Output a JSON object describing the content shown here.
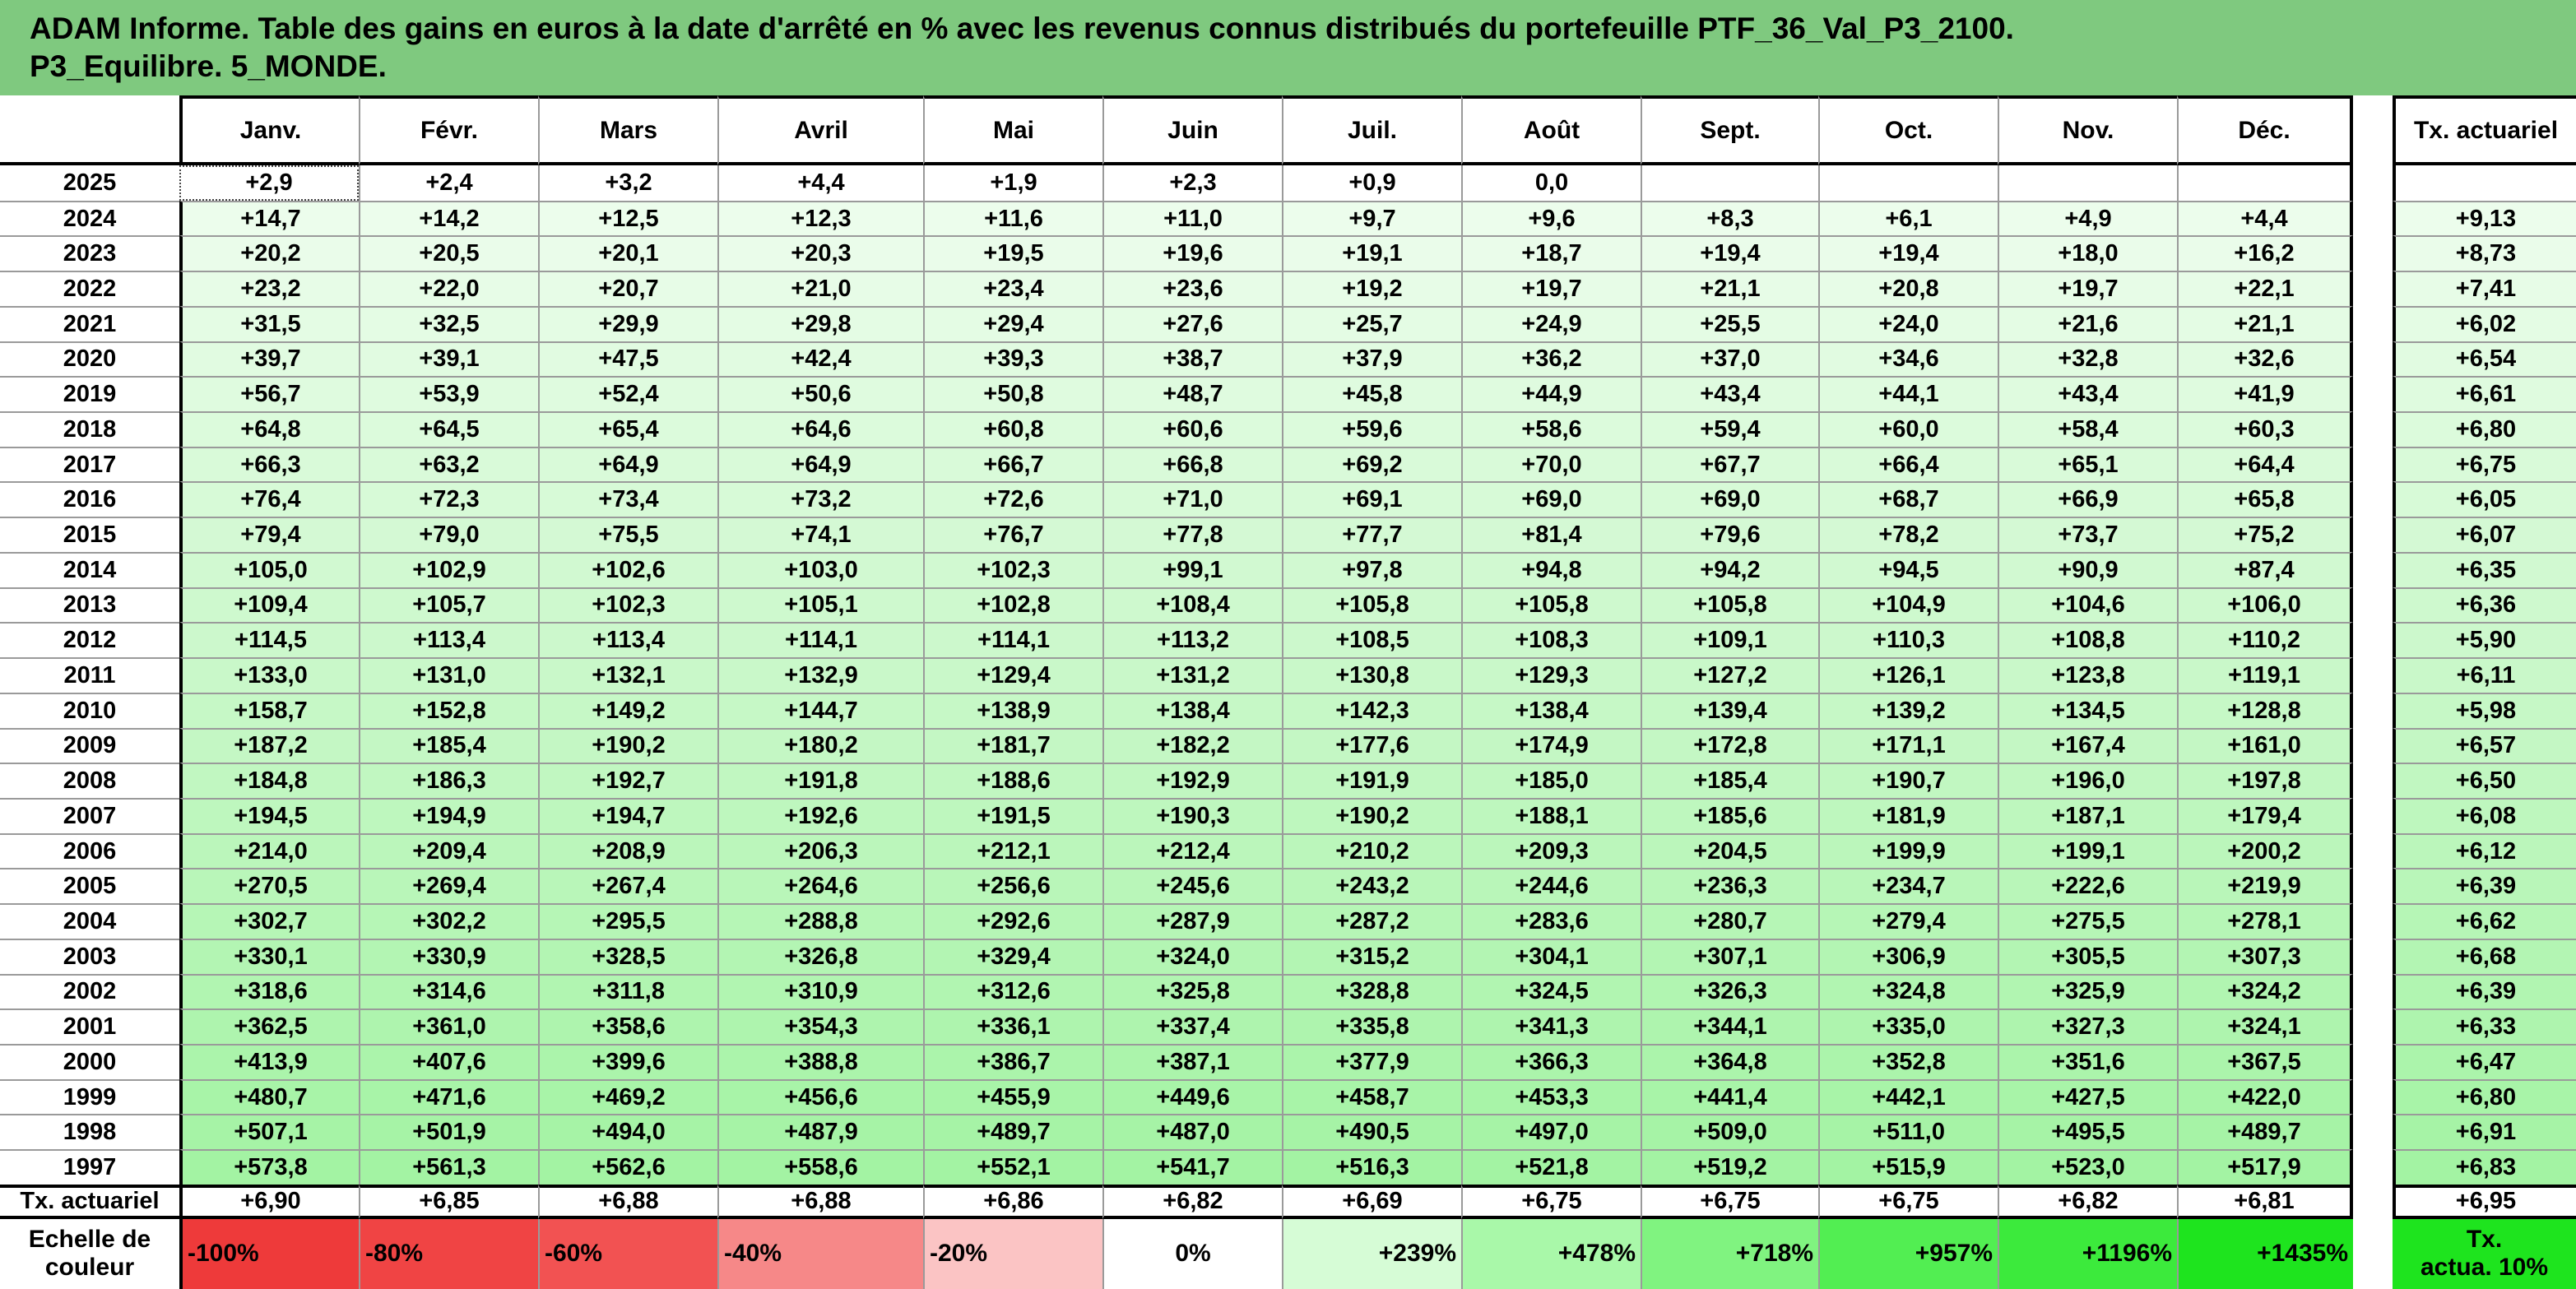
{
  "title": "ADAM Informe. Table des gains en euros à la date d'arrêté en % avec les revenus connus distribués du portefeuille PTF_36_Val_P3_2100.\nP3_Equilibre. 5_MONDE.",
  "header": {
    "months": [
      "Janv.",
      "Févr.",
      "Mars",
      "Avril",
      "Mai",
      "Juin",
      "Juil.",
      "Août",
      "Sept.",
      "Oct.",
      "Nov.",
      "Déc."
    ],
    "actuarial_label": "Tx. actuariel"
  },
  "rows": [
    {
      "year": "2025",
      "values": [
        "+2,9",
        "+2,4",
        "+3,2",
        "+4,4",
        "+1,9",
        "+2,3",
        "+0,9",
        "0,0",
        "",
        "",
        "",
        ""
      ],
      "rate": ""
    },
    {
      "year": "2024",
      "values": [
        "+14,7",
        "+14,2",
        "+12,5",
        "+12,3",
        "+11,6",
        "+11,0",
        "+9,7",
        "+9,6",
        "+8,3",
        "+6,1",
        "+4,9",
        "+4,4"
      ],
      "rate": "+9,13"
    },
    {
      "year": "2023",
      "values": [
        "+20,2",
        "+20,5",
        "+20,1",
        "+20,3",
        "+19,5",
        "+19,6",
        "+19,1",
        "+18,7",
        "+19,4",
        "+19,4",
        "+18,0",
        "+16,2"
      ],
      "rate": "+8,73"
    },
    {
      "year": "2022",
      "values": [
        "+23,2",
        "+22,0",
        "+20,7",
        "+21,0",
        "+23,4",
        "+23,6",
        "+19,2",
        "+19,7",
        "+21,1",
        "+20,8",
        "+19,7",
        "+22,1"
      ],
      "rate": "+7,41"
    },
    {
      "year": "2021",
      "values": [
        "+31,5",
        "+32,5",
        "+29,9",
        "+29,8",
        "+29,4",
        "+27,6",
        "+25,7",
        "+24,9",
        "+25,5",
        "+24,0",
        "+21,6",
        "+21,1"
      ],
      "rate": "+6,02"
    },
    {
      "year": "2020",
      "values": [
        "+39,7",
        "+39,1",
        "+47,5",
        "+42,4",
        "+39,3",
        "+38,7",
        "+37,9",
        "+36,2",
        "+37,0",
        "+34,6",
        "+32,8",
        "+32,6"
      ],
      "rate": "+6,54"
    },
    {
      "year": "2019",
      "values": [
        "+56,7",
        "+53,9",
        "+52,4",
        "+50,6",
        "+50,8",
        "+48,7",
        "+45,8",
        "+44,9",
        "+43,4",
        "+44,1",
        "+43,4",
        "+41,9"
      ],
      "rate": "+6,61"
    },
    {
      "year": "2018",
      "values": [
        "+64,8",
        "+64,5",
        "+65,4",
        "+64,6",
        "+60,8",
        "+60,6",
        "+59,6",
        "+58,6",
        "+59,4",
        "+60,0",
        "+58,4",
        "+60,3"
      ],
      "rate": "+6,80"
    },
    {
      "year": "2017",
      "values": [
        "+66,3",
        "+63,2",
        "+64,9",
        "+64,9",
        "+66,7",
        "+66,8",
        "+69,2",
        "+70,0",
        "+67,7",
        "+66,4",
        "+65,1",
        "+64,4"
      ],
      "rate": "+6,75"
    },
    {
      "year": "2016",
      "values": [
        "+76,4",
        "+72,3",
        "+73,4",
        "+73,2",
        "+72,6",
        "+71,0",
        "+69,1",
        "+69,0",
        "+69,0",
        "+68,7",
        "+66,9",
        "+65,8"
      ],
      "rate": "+6,05"
    },
    {
      "year": "2015",
      "values": [
        "+79,4",
        "+79,0",
        "+75,5",
        "+74,1",
        "+76,7",
        "+77,8",
        "+77,7",
        "+81,4",
        "+79,6",
        "+78,2",
        "+73,7",
        "+75,2"
      ],
      "rate": "+6,07"
    },
    {
      "year": "2014",
      "values": [
        "+105,0",
        "+102,9",
        "+102,6",
        "+103,0",
        "+102,3",
        "+99,1",
        "+97,8",
        "+94,8",
        "+94,2",
        "+94,5",
        "+90,9",
        "+87,4"
      ],
      "rate": "+6,35"
    },
    {
      "year": "2013",
      "values": [
        "+109,4",
        "+105,7",
        "+102,3",
        "+105,1",
        "+102,8",
        "+108,4",
        "+105,8",
        "+105,8",
        "+105,8",
        "+104,9",
        "+104,6",
        "+106,0"
      ],
      "rate": "+6,36"
    },
    {
      "year": "2012",
      "values": [
        "+114,5",
        "+113,4",
        "+113,4",
        "+114,1",
        "+114,1",
        "+113,2",
        "+108,5",
        "+108,3",
        "+109,1",
        "+110,3",
        "+108,8",
        "+110,2"
      ],
      "rate": "+5,90"
    },
    {
      "year": "2011",
      "values": [
        "+133,0",
        "+131,0",
        "+132,1",
        "+132,9",
        "+129,4",
        "+131,2",
        "+130,8",
        "+129,3",
        "+127,2",
        "+126,1",
        "+123,8",
        "+119,1"
      ],
      "rate": "+6,11"
    },
    {
      "year": "2010",
      "values": [
        "+158,7",
        "+152,8",
        "+149,2",
        "+144,7",
        "+138,9",
        "+138,4",
        "+142,3",
        "+138,4",
        "+139,4",
        "+139,2",
        "+134,5",
        "+128,8"
      ],
      "rate": "+5,98"
    },
    {
      "year": "2009",
      "values": [
        "+187,2",
        "+185,4",
        "+190,2",
        "+180,2",
        "+181,7",
        "+182,2",
        "+177,6",
        "+174,9",
        "+172,8",
        "+171,1",
        "+167,4",
        "+161,0"
      ],
      "rate": "+6,57"
    },
    {
      "year": "2008",
      "values": [
        "+184,8",
        "+186,3",
        "+192,7",
        "+191,8",
        "+188,6",
        "+192,9",
        "+191,9",
        "+185,0",
        "+185,4",
        "+190,7",
        "+196,0",
        "+197,8"
      ],
      "rate": "+6,50"
    },
    {
      "year": "2007",
      "values": [
        "+194,5",
        "+194,9",
        "+194,7",
        "+192,6",
        "+191,5",
        "+190,3",
        "+190,2",
        "+188,1",
        "+185,6",
        "+181,9",
        "+187,1",
        "+179,4"
      ],
      "rate": "+6,08"
    },
    {
      "year": "2006",
      "values": [
        "+214,0",
        "+209,4",
        "+208,9",
        "+206,3",
        "+212,1",
        "+212,4",
        "+210,2",
        "+209,3",
        "+204,5",
        "+199,9",
        "+199,1",
        "+200,2"
      ],
      "rate": "+6,12"
    },
    {
      "year": "2005",
      "values": [
        "+270,5",
        "+269,4",
        "+267,4",
        "+264,6",
        "+256,6",
        "+245,6",
        "+243,2",
        "+244,6",
        "+236,3",
        "+234,7",
        "+222,6",
        "+219,9"
      ],
      "rate": "+6,39"
    },
    {
      "year": "2004",
      "values": [
        "+302,7",
        "+302,2",
        "+295,5",
        "+288,8",
        "+292,6",
        "+287,9",
        "+287,2",
        "+283,6",
        "+280,7",
        "+279,4",
        "+275,5",
        "+278,1"
      ],
      "rate": "+6,62"
    },
    {
      "year": "2003",
      "values": [
        "+330,1",
        "+330,9",
        "+328,5",
        "+326,8",
        "+329,4",
        "+324,0",
        "+315,2",
        "+304,1",
        "+307,1",
        "+306,9",
        "+305,5",
        "+307,3"
      ],
      "rate": "+6,68"
    },
    {
      "year": "2002",
      "values": [
        "+318,6",
        "+314,6",
        "+311,8",
        "+310,9",
        "+312,6",
        "+325,8",
        "+328,8",
        "+324,5",
        "+326,3",
        "+324,8",
        "+325,9",
        "+324,2"
      ],
      "rate": "+6,39"
    },
    {
      "year": "2001",
      "values": [
        "+362,5",
        "+361,0",
        "+358,6",
        "+354,3",
        "+336,1",
        "+337,4",
        "+335,8",
        "+341,3",
        "+344,1",
        "+335,0",
        "+327,3",
        "+324,1"
      ],
      "rate": "+6,33"
    },
    {
      "year": "2000",
      "values": [
        "+413,9",
        "+407,6",
        "+399,6",
        "+388,8",
        "+386,7",
        "+387,1",
        "+377,9",
        "+366,3",
        "+364,8",
        "+352,8",
        "+351,6",
        "+367,5"
      ],
      "rate": "+6,47"
    },
    {
      "year": "1999",
      "values": [
        "+480,7",
        "+471,6",
        "+469,2",
        "+456,6",
        "+455,9",
        "+449,6",
        "+458,7",
        "+453,3",
        "+441,4",
        "+442,1",
        "+427,5",
        "+422,0"
      ],
      "rate": "+6,80"
    },
    {
      "year": "1998",
      "values": [
        "+507,1",
        "+501,9",
        "+494,0",
        "+487,9",
        "+489,7",
        "+487,0",
        "+490,5",
        "+497,0",
        "+509,0",
        "+511,0",
        "+495,5",
        "+489,7"
      ],
      "rate": "+6,91"
    },
    {
      "year": "1997",
      "values": [
        "+573,8",
        "+561,3",
        "+562,6",
        "+558,6",
        "+552,1",
        "+541,7",
        "+516,3",
        "+521,8",
        "+519,2",
        "+515,9",
        "+523,0",
        "+517,9"
      ],
      "rate": "+6,83"
    }
  ],
  "totals": {
    "label": "Tx. actuariel",
    "values": [
      "+6,90",
      "+6,85",
      "+6,88",
      "+6,88",
      "+6,86",
      "+6,82",
      "+6,69",
      "+6,75",
      "+6,75",
      "+6,75",
      "+6,82",
      "+6,81"
    ],
    "rate": "+6,95"
  },
  "scale": {
    "label": "Echelle de\ncouleur",
    "steps": [
      {
        "text": "-100%",
        "color": "#ee3a3a"
      },
      {
        "text": "-80%",
        "color": "#f04444"
      },
      {
        "text": "-60%",
        "color": "#f25252"
      },
      {
        "text": "-40%",
        "color": "#f68888"
      },
      {
        "text": "-20%",
        "color": "#fbc4c4"
      },
      {
        "text": "0%",
        "color": "#ffffff"
      },
      {
        "text": "+239%",
        "color": "#d6fcd6"
      },
      {
        "text": "+478%",
        "color": "#a9f8a9"
      },
      {
        "text": "+718%",
        "color": "#80f380"
      },
      {
        "text": "+957%",
        "color": "#52ee52"
      },
      {
        "text": "+1196%",
        "color": "#3cea3c"
      },
      {
        "text": "+1435%",
        "color": "#1ee41e"
      }
    ],
    "rate_label": "Tx.\nactua. 10%",
    "rate_color": "#1ee41e"
  },
  "colors": {
    "title_bg": "#7fc97f",
    "cell_low": "#effdef",
    "cell_high": "#a3f3a3"
  }
}
